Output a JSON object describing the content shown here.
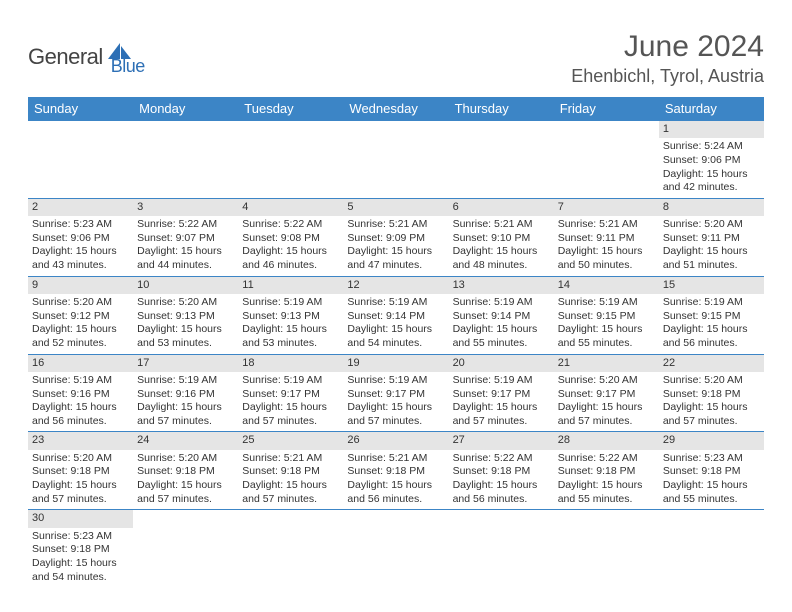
{
  "logo": {
    "general": "General",
    "blue": "Blue"
  },
  "title": {
    "monthYear": "June 2024",
    "location": "Ehenbichl, Tyrol, Austria"
  },
  "colors": {
    "headerBlue": "#3c85c6",
    "bandGray": "#e5e5e5",
    "textDark": "#333333",
    "titleGray": "#555555",
    "logoGray": "#444444",
    "logoBlue": "#2d6fb5",
    "white": "#ffffff"
  },
  "dayNames": [
    "Sunday",
    "Monday",
    "Tuesday",
    "Wednesday",
    "Thursday",
    "Friday",
    "Saturday"
  ],
  "weeks": [
    [
      null,
      null,
      null,
      null,
      null,
      null,
      {
        "n": "1",
        "sr": "5:24 AM",
        "ss": "9:06 PM",
        "dl": "15 hours and 42 minutes."
      }
    ],
    [
      {
        "n": "2",
        "sr": "5:23 AM",
        "ss": "9:06 PM",
        "dl": "15 hours and 43 minutes."
      },
      {
        "n": "3",
        "sr": "5:22 AM",
        "ss": "9:07 PM",
        "dl": "15 hours and 44 minutes."
      },
      {
        "n": "4",
        "sr": "5:22 AM",
        "ss": "9:08 PM",
        "dl": "15 hours and 46 minutes."
      },
      {
        "n": "5",
        "sr": "5:21 AM",
        "ss": "9:09 PM",
        "dl": "15 hours and 47 minutes."
      },
      {
        "n": "6",
        "sr": "5:21 AM",
        "ss": "9:10 PM",
        "dl": "15 hours and 48 minutes."
      },
      {
        "n": "7",
        "sr": "5:21 AM",
        "ss": "9:11 PM",
        "dl": "15 hours and 50 minutes."
      },
      {
        "n": "8",
        "sr": "5:20 AM",
        "ss": "9:11 PM",
        "dl": "15 hours and 51 minutes."
      }
    ],
    [
      {
        "n": "9",
        "sr": "5:20 AM",
        "ss": "9:12 PM",
        "dl": "15 hours and 52 minutes."
      },
      {
        "n": "10",
        "sr": "5:20 AM",
        "ss": "9:13 PM",
        "dl": "15 hours and 53 minutes."
      },
      {
        "n": "11",
        "sr": "5:19 AM",
        "ss": "9:13 PM",
        "dl": "15 hours and 53 minutes."
      },
      {
        "n": "12",
        "sr": "5:19 AM",
        "ss": "9:14 PM",
        "dl": "15 hours and 54 minutes."
      },
      {
        "n": "13",
        "sr": "5:19 AM",
        "ss": "9:14 PM",
        "dl": "15 hours and 55 minutes."
      },
      {
        "n": "14",
        "sr": "5:19 AM",
        "ss": "9:15 PM",
        "dl": "15 hours and 55 minutes."
      },
      {
        "n": "15",
        "sr": "5:19 AM",
        "ss": "9:15 PM",
        "dl": "15 hours and 56 minutes."
      }
    ],
    [
      {
        "n": "16",
        "sr": "5:19 AM",
        "ss": "9:16 PM",
        "dl": "15 hours and 56 minutes."
      },
      {
        "n": "17",
        "sr": "5:19 AM",
        "ss": "9:16 PM",
        "dl": "15 hours and 57 minutes."
      },
      {
        "n": "18",
        "sr": "5:19 AM",
        "ss": "9:17 PM",
        "dl": "15 hours and 57 minutes."
      },
      {
        "n": "19",
        "sr": "5:19 AM",
        "ss": "9:17 PM",
        "dl": "15 hours and 57 minutes."
      },
      {
        "n": "20",
        "sr": "5:19 AM",
        "ss": "9:17 PM",
        "dl": "15 hours and 57 minutes."
      },
      {
        "n": "21",
        "sr": "5:20 AM",
        "ss": "9:17 PM",
        "dl": "15 hours and 57 minutes."
      },
      {
        "n": "22",
        "sr": "5:20 AM",
        "ss": "9:18 PM",
        "dl": "15 hours and 57 minutes."
      }
    ],
    [
      {
        "n": "23",
        "sr": "5:20 AM",
        "ss": "9:18 PM",
        "dl": "15 hours and 57 minutes."
      },
      {
        "n": "24",
        "sr": "5:20 AM",
        "ss": "9:18 PM",
        "dl": "15 hours and 57 minutes."
      },
      {
        "n": "25",
        "sr": "5:21 AM",
        "ss": "9:18 PM",
        "dl": "15 hours and 57 minutes."
      },
      {
        "n": "26",
        "sr": "5:21 AM",
        "ss": "9:18 PM",
        "dl": "15 hours and 56 minutes."
      },
      {
        "n": "27",
        "sr": "5:22 AM",
        "ss": "9:18 PM",
        "dl": "15 hours and 56 minutes."
      },
      {
        "n": "28",
        "sr": "5:22 AM",
        "ss": "9:18 PM",
        "dl": "15 hours and 55 minutes."
      },
      {
        "n": "29",
        "sr": "5:23 AM",
        "ss": "9:18 PM",
        "dl": "15 hours and 55 minutes."
      }
    ],
    [
      {
        "n": "30",
        "sr": "5:23 AM",
        "ss": "9:18 PM",
        "dl": "15 hours and 54 minutes."
      },
      null,
      null,
      null,
      null,
      null,
      null
    ]
  ],
  "labels": {
    "sunrise": "Sunrise:",
    "sunset": "Sunset:",
    "daylight": "Daylight:"
  }
}
